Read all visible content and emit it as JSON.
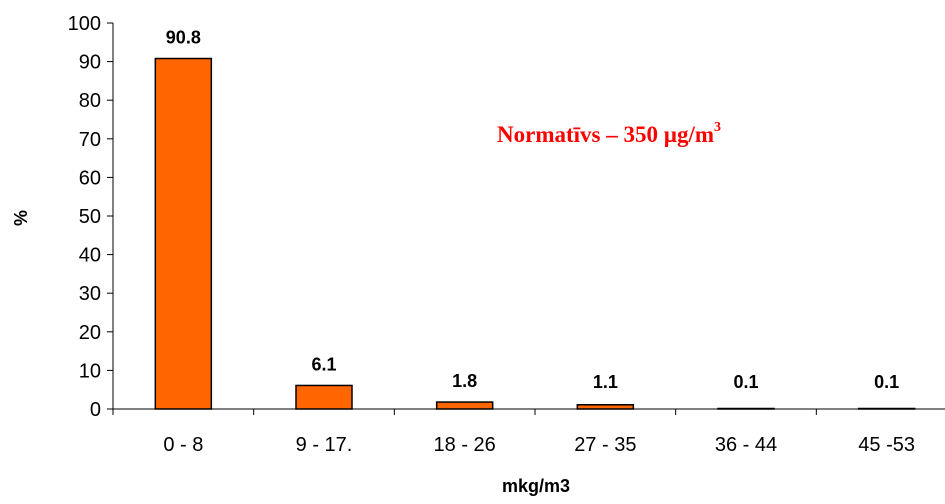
{
  "chart_data": {
    "type": "bar",
    "categories": [
      "0 - 8",
      "9 - 17.",
      "18 - 26",
      "27 - 35",
      "36 - 44",
      "45 -53"
    ],
    "values": [
      90.8,
      6.1,
      1.8,
      1.1,
      0.1,
      0.1
    ],
    "data_labels": [
      "90.8",
      "6.1",
      "1.8",
      "1.1",
      "0.1",
      "0.1"
    ],
    "title": "",
    "xlabel": "mkg/m3",
    "ylabel": "%",
    "ylim": [
      0,
      100
    ],
    "yticks": [
      "0",
      "10",
      "20",
      "30",
      "40",
      "50",
      "60",
      "70",
      "80",
      "90",
      "100"
    ],
    "grid": false,
    "legend": "none",
    "bar_color": "#ff6600",
    "bar_edge_color": "#000000",
    "annotation": {
      "text": "Normatīvs – 350 µg/m",
      "superscript": "3",
      "color": "#ff0000"
    }
  }
}
